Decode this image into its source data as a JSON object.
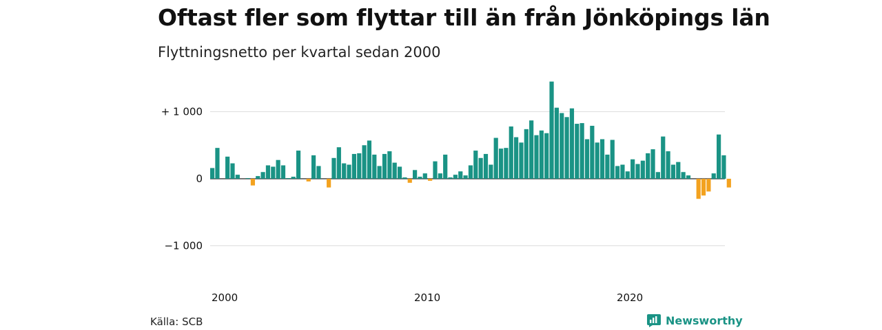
{
  "title": "Oftast fler som flyttar till än från Jönköpings län",
  "subtitle": "Flyttningsnetto per kvartal sedan 2000",
  "source": "Källa: SCB",
  "brand": "Newsworthy",
  "colors": {
    "positive": "#1a9385",
    "negative": "#f3a21f",
    "grid": "#dddddd",
    "zero": "#222222"
  },
  "chart_data": {
    "type": "bar",
    "ylim": [
      -1400,
      1500
    ],
    "yticks": [
      {
        "value": 1000,
        "label": "+ 1 000"
      },
      {
        "value": 0,
        "label": "0"
      },
      {
        "value": -1000,
        "label": "−1 000"
      }
    ],
    "xticks": [
      {
        "year": 2000,
        "label": "2000"
      },
      {
        "year": 2010,
        "label": "2010"
      },
      {
        "year": 2020,
        "label": "2020"
      }
    ],
    "start": "2000 Q1",
    "categories": [
      "2000 Q1",
      "2000 Q2",
      "2000 Q3",
      "2000 Q4",
      "2001 Q1",
      "2001 Q2",
      "2001 Q3",
      "2001 Q4",
      "2002 Q1",
      "2002 Q2",
      "2002 Q3",
      "2002 Q4",
      "2003 Q1",
      "2003 Q2",
      "2003 Q3",
      "2003 Q4",
      "2004 Q1",
      "2004 Q2",
      "2004 Q3",
      "2004 Q4",
      "2005 Q1",
      "2005 Q2",
      "2005 Q3",
      "2005 Q4",
      "2006 Q1",
      "2006 Q2",
      "2006 Q3",
      "2006 Q4",
      "2007 Q1",
      "2007 Q2",
      "2007 Q3",
      "2007 Q4",
      "2008 Q1",
      "2008 Q2",
      "2008 Q3",
      "2008 Q4",
      "2009 Q1",
      "2009 Q2",
      "2009 Q3",
      "2009 Q4",
      "2010 Q1",
      "2010 Q2",
      "2010 Q3",
      "2010 Q4",
      "2011 Q1",
      "2011 Q2",
      "2011 Q3",
      "2011 Q4",
      "2012 Q1",
      "2012 Q2",
      "2012 Q3",
      "2012 Q4",
      "2013 Q1",
      "2013 Q2",
      "2013 Q3",
      "2013 Q4",
      "2014 Q1",
      "2014 Q2",
      "2014 Q3",
      "2014 Q4",
      "2015 Q1",
      "2015 Q2",
      "2015 Q3",
      "2015 Q4",
      "2016 Q1",
      "2016 Q2",
      "2016 Q3",
      "2016 Q4",
      "2017 Q1",
      "2017 Q2",
      "2017 Q3",
      "2017 Q4",
      "2018 Q1",
      "2018 Q2",
      "2018 Q3",
      "2018 Q4",
      "2019 Q1",
      "2019 Q2",
      "2019 Q3",
      "2019 Q4",
      "2020 Q1",
      "2020 Q2",
      "2020 Q3",
      "2020 Q4",
      "2021 Q1",
      "2021 Q2",
      "2021 Q3",
      "2021 Q4",
      "2022 Q1",
      "2022 Q2",
      "2022 Q3",
      "2022 Q4",
      "2023 Q1",
      "2023 Q2",
      "2023 Q3",
      "2023 Q4",
      "2024 Q1",
      "2024 Q2",
      "2024 Q3",
      "2024 Q4",
      "2025 Q1",
      "2025 Q2",
      "2025 Q3"
    ],
    "values": [
      160,
      460,
      0,
      330,
      230,
      60,
      0,
      10,
      -100,
      40,
      100,
      200,
      180,
      280,
      200,
      10,
      30,
      420,
      0,
      -40,
      350,
      190,
      0,
      -130,
      310,
      470,
      230,
      210,
      370,
      380,
      500,
      570,
      360,
      190,
      370,
      410,
      240,
      180,
      20,
      -60,
      130,
      30,
      80,
      -30,
      260,
      80,
      360,
      20,
      60,
      110,
      50,
      200,
      420,
      310,
      370,
      210,
      610,
      450,
      460,
      780,
      620,
      540,
      740,
      870,
      650,
      720,
      680,
      1450,
      1060,
      980,
      920,
      1050,
      820,
      830,
      590,
      790,
      540,
      590,
      360,
      580,
      190,
      210,
      110,
      290,
      220,
      270,
      380,
      440,
      100,
      630,
      410,
      210,
      250,
      100,
      50,
      0,
      -300,
      -250,
      -190,
      80,
      660,
      350,
      -130
    ]
  }
}
